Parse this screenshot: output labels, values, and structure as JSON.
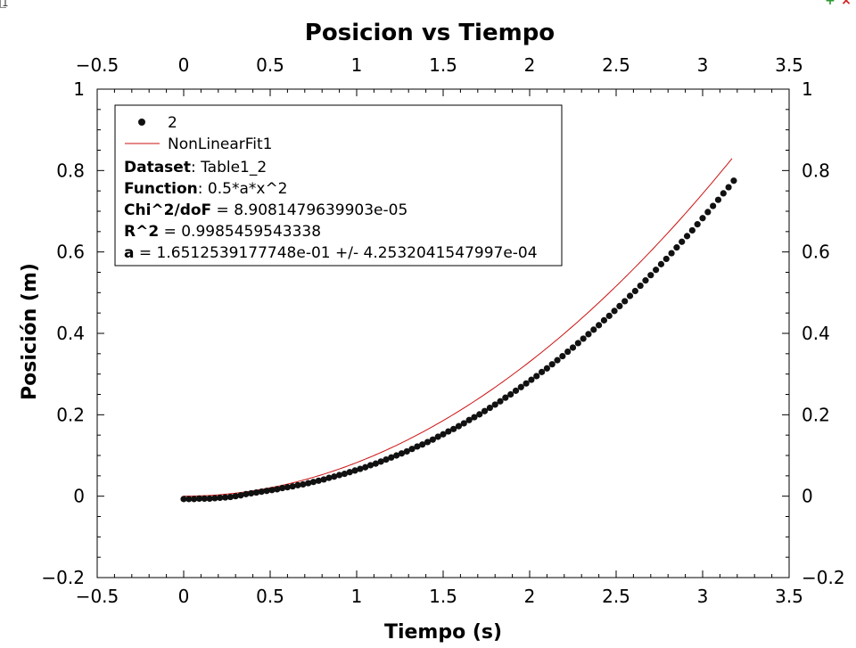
{
  "window": {
    "layer_label": "1",
    "add_symbol": "+",
    "close_symbol": "×"
  },
  "colors": {
    "points": "#111111",
    "fit_line": "#cc1111",
    "axis": "#000000"
  },
  "chart_data": {
    "type": "scatter",
    "title": "Posicion vs Tiempo",
    "xlabel": "Tiempo (s)",
    "ylabel": "Posición (m)",
    "xlim": [
      -0.5,
      3.5
    ],
    "ylim": [
      -0.2,
      1.0
    ],
    "x_ticks": [
      "−0.5",
      "0",
      "0.5",
      "1",
      "1.5",
      "2",
      "2.5",
      "3",
      "3.5"
    ],
    "x_tick_values": [
      -0.5,
      0,
      0.5,
      1,
      1.5,
      2,
      2.5,
      3,
      3.5
    ],
    "y_ticks": [
      "−0.2",
      "0",
      "0.2",
      "0.4",
      "0.6",
      "0.8",
      "1"
    ],
    "y_tick_values": [
      -0.2,
      0,
      0.2,
      0.4,
      0.6,
      0.8,
      1.0
    ],
    "grid": false,
    "legend_position": "top-left",
    "series": [
      {
        "name": "2",
        "kind": "points",
        "x_start": 0.0,
        "x_step": 0.03,
        "y": [
          -0.007,
          -0.007,
          -0.007,
          -0.006,
          -0.006,
          -0.006,
          -0.005,
          -0.004,
          -0.003,
          -0.002,
          0.0,
          0.002,
          0.005,
          0.007,
          0.009,
          0.011,
          0.013,
          0.015,
          0.017,
          0.02,
          0.022,
          0.024,
          0.027,
          0.029,
          0.032,
          0.035,
          0.038,
          0.041,
          0.045,
          0.048,
          0.052,
          0.055,
          0.059,
          0.063,
          0.067,
          0.071,
          0.076,
          0.08,
          0.085,
          0.09,
          0.095,
          0.1,
          0.105,
          0.11,
          0.116,
          0.122,
          0.127,
          0.133,
          0.139,
          0.146,
          0.152,
          0.159,
          0.165,
          0.172,
          0.179,
          0.187,
          0.194,
          0.201,
          0.209,
          0.217,
          0.225,
          0.233,
          0.242,
          0.25,
          0.259,
          0.268,
          0.277,
          0.286,
          0.295,
          0.305,
          0.314,
          0.324,
          0.334,
          0.344,
          0.355,
          0.365,
          0.376,
          0.387,
          0.398,
          0.409,
          0.42,
          0.432,
          0.443,
          0.455,
          0.467,
          0.479,
          0.492,
          0.504,
          0.517,
          0.53,
          0.543,
          0.556,
          0.57,
          0.583,
          0.597,
          0.611,
          0.625,
          0.639,
          0.653,
          0.668,
          0.683,
          0.698,
          0.713,
          0.728,
          0.744,
          0.759,
          0.775
        ]
      },
      {
        "name": "NonLinearFit1",
        "kind": "line",
        "function": "0.5*a*x^2",
        "a": 0.16512539177748,
        "x_range": [
          0.0,
          3.17
        ]
      }
    ],
    "legend_text": {
      "dataset_label": "Dataset",
      "dataset_value": ": Table1_2",
      "function_label": "Function",
      "function_value": ": 0.5*a*x^2",
      "chi_label": "Chi^2/doF",
      "chi_value": " = 8.9081479639903e-05",
      "r2_label": "R^2",
      "r2_value": " = 0.9985459543338",
      "a_label": "a",
      "a_value": " = 1.6512539177748e-01 +/- 4.2532041547997e-04"
    }
  }
}
